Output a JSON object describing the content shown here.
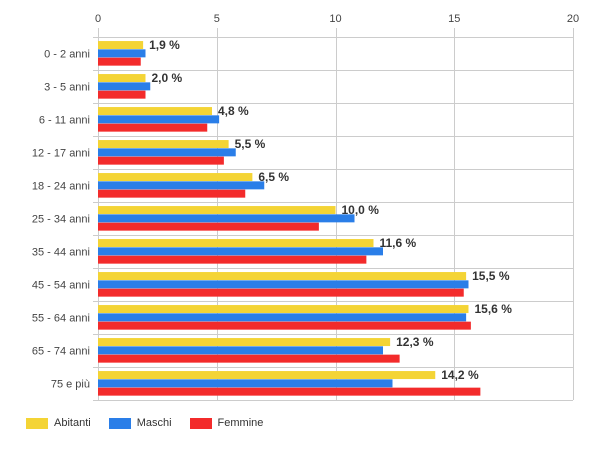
{
  "chart_data": {
    "type": "bar",
    "orientation": "horizontal",
    "categories": [
      "0 - 2 anni",
      "3 - 5 anni",
      "6 - 11 anni",
      "12 - 17 anni",
      "18 - 24 anni",
      "25 - 34 anni",
      "35 - 44 anni",
      "45 - 54 anni",
      "55 - 64 anni",
      "65 - 74 anni",
      "75 e più"
    ],
    "series": [
      {
        "name": "Abitanti",
        "color": "#f4d435",
        "values": [
          1.9,
          2.0,
          4.8,
          5.5,
          6.5,
          10.0,
          11.6,
          15.5,
          15.6,
          12.3,
          14.2
        ]
      },
      {
        "name": "Maschi",
        "color": "#2a7ee8",
        "values": [
          2.0,
          2.2,
          5.1,
          5.8,
          7.0,
          10.8,
          12.0,
          15.6,
          15.5,
          12.0,
          12.4
        ]
      },
      {
        "name": "Femmine",
        "color": "#f32b2b",
        "values": [
          1.8,
          2.0,
          4.6,
          5.3,
          6.2,
          9.3,
          11.3,
          15.4,
          15.7,
          12.7,
          16.1
        ]
      }
    ],
    "data_labels": [
      "1,9 %",
      "2,0 %",
      "4,8 %",
      "5,5 %",
      "6,5 %",
      "10,0 %",
      "11,6 %",
      "15,5 %",
      "15,6 %",
      "12,3 %",
      "14,2 %"
    ],
    "xlim": [
      0,
      20
    ],
    "xticks": [
      "0",
      "5",
      "10",
      "15",
      "20"
    ],
    "xtick_values": [
      0,
      5,
      10,
      15,
      20
    ],
    "grid": true,
    "legend_position": "bottom-left"
  }
}
